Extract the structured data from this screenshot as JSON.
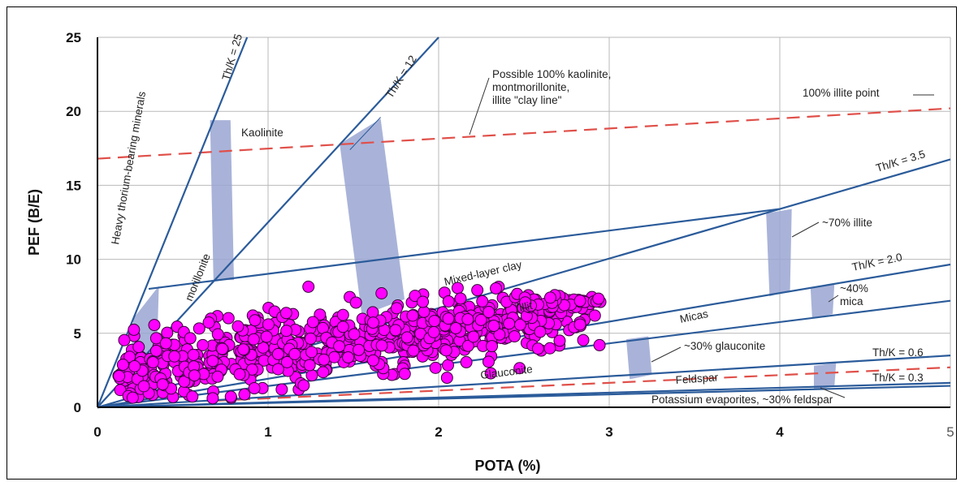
{
  "chart_data": {
    "type": "scatter",
    "xlabel": "POTA (%)",
    "ylabel": "PEF (B/E)",
    "xlim": [
      0,
      5
    ],
    "ylim": [
      0,
      25
    ],
    "x_ticks": [
      "0",
      "1",
      "2",
      "3",
      "4",
      "5"
    ],
    "y_ticks": [
      "0",
      "5",
      "10",
      "15",
      "20",
      "25"
    ],
    "grid": true,
    "point_color": "#ff00ff",
    "line_color": "#2b5b9a",
    "band_color": "#9aa6d2",
    "dashed_color": "#e0504a",
    "ratio_lines": [
      {
        "label": "Th/K = 25",
        "slope": 28.5
      },
      {
        "label": "Th/K = 12",
        "slope": 12.5
      },
      {
        "label": "Th/K = 3.5",
        "slope": 3.35
      },
      {
        "label": "Th/K = 2.0",
        "slope": 1.93
      },
      {
        "label": "Th/K = 0.6",
        "slope": 0.7
      },
      {
        "label": "Th/K = 0.3",
        "slope": 0.33
      }
    ],
    "extra_lines": [
      {
        "x": [
          0,
          5
        ],
        "y": [
          0,
          1.45
        ]
      },
      {
        "x": [
          0.3,
          4.0
        ],
        "y": [
          8.0,
          13.4
        ]
      },
      {
        "x": [
          0,
          5
        ],
        "y": [
          0,
          7.2
        ]
      }
    ],
    "dashed_lines": [
      {
        "x": [
          0,
          5
        ],
        "y": [
          16.8,
          20.2
        ]
      },
      {
        "x": [
          0.7,
          5
        ],
        "y": [
          0.45,
          2.7
        ]
      }
    ],
    "annotations": [
      "Heavy thorium-bearing minerals",
      "Kaolinite",
      "Possible 100% kaolinite,",
      "montmorillonite,",
      "illite \"clay line\"",
      "100% illite point",
      "~70% illite",
      "Mixed-layer clay",
      "~40%",
      "mica",
      "Micas",
      "~30% glauconite",
      "Glauconite",
      "Feldspar",
      "Potassium evaporites, ~30% feldspar",
      "morillonite",
      "Illit"
    ],
    "clusters": [
      {
        "cx": 1.35,
        "cy": 4.2,
        "sx": 0.55,
        "sy": 1.1,
        "slope": 1.9,
        "n": 430
      },
      {
        "cx": 2.25,
        "cy": 5.7,
        "sx": 0.35,
        "sy": 0.9,
        "slope": 1.2,
        "n": 200
      },
      {
        "cx": 0.45,
        "cy": 2.3,
        "sx": 0.22,
        "sy": 0.9,
        "slope": 2.5,
        "n": 90
      }
    ]
  }
}
